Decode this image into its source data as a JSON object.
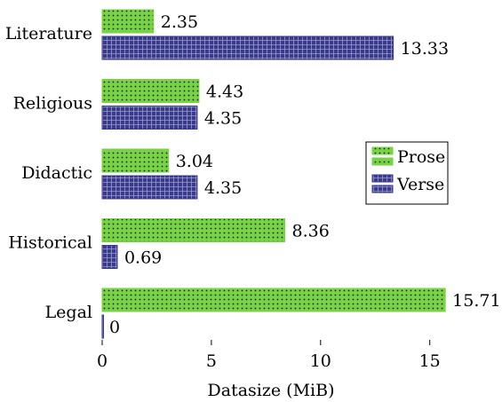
{
  "chart_data": {
    "type": "bar",
    "orientation": "horizontal",
    "title": "",
    "xlabel": "Datasize (MiB)",
    "ylabel": "",
    "categories": [
      "Literature",
      "Religious",
      "Didactic",
      "Historical",
      "Legal"
    ],
    "series": [
      {
        "name": "Prose",
        "values": [
          2.35,
          4.43,
          3.04,
          8.36,
          15.71
        ],
        "value_labels": [
          "2.35",
          "4.43",
          "3.04",
          "8.36",
          "15.71"
        ],
        "color": "#77d345",
        "pattern": "dots"
      },
      {
        "name": "Verse",
        "values": [
          13.33,
          4.35,
          4.35,
          0.69,
          0
        ],
        "value_labels": [
          "13.33",
          "4.35",
          "4.35",
          "0.69",
          "0"
        ],
        "color": "#3a3a8a",
        "pattern": "grid"
      }
    ],
    "xticks": [
      0,
      5,
      10,
      15
    ],
    "xtick_labels": [
      "0",
      "5",
      "10",
      "15"
    ],
    "xlim": [
      0,
      17.5
    ],
    "grid": false,
    "legend_position": "right"
  }
}
